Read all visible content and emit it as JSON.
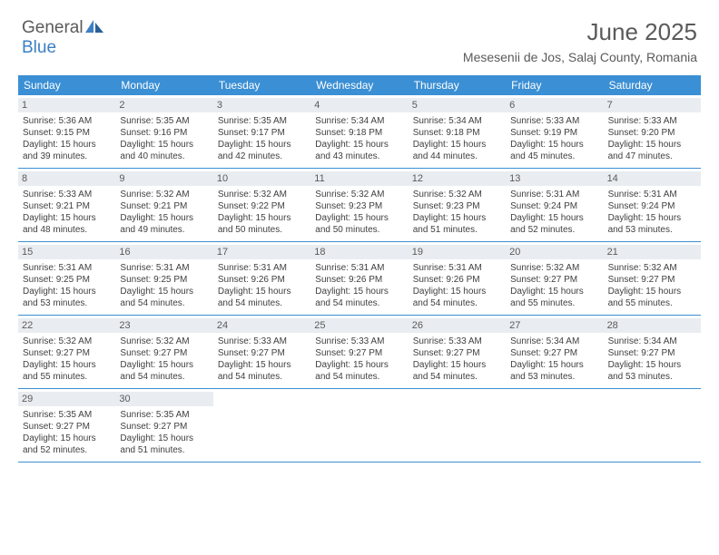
{
  "logo": {
    "text1": "General",
    "text2": "Blue"
  },
  "title": "June 2025",
  "location": "Mesesenii de Jos, Salaj County, Romania",
  "colors": {
    "header_bg": "#3b8fd4",
    "daynum_bg": "#e9edf1",
    "text_muted": "#5a5a5a",
    "text_body": "#404040",
    "logo_blue": "#3b7fc4"
  },
  "layout": {
    "columns": 7,
    "weeks": 5,
    "daynum_fontsize": 11,
    "body_fontsize": 10,
    "header_fontsize": 12,
    "title_fontsize": 26,
    "location_fontsize": 14
  },
  "daynames": [
    "Sunday",
    "Monday",
    "Tuesday",
    "Wednesday",
    "Thursday",
    "Friday",
    "Saturday"
  ],
  "days": [
    {
      "n": "1",
      "sr": "Sunrise: 5:36 AM",
      "ss": "Sunset: 9:15 PM",
      "d1": "Daylight: 15 hours",
      "d2": "and 39 minutes."
    },
    {
      "n": "2",
      "sr": "Sunrise: 5:35 AM",
      "ss": "Sunset: 9:16 PM",
      "d1": "Daylight: 15 hours",
      "d2": "and 40 minutes."
    },
    {
      "n": "3",
      "sr": "Sunrise: 5:35 AM",
      "ss": "Sunset: 9:17 PM",
      "d1": "Daylight: 15 hours",
      "d2": "and 42 minutes."
    },
    {
      "n": "4",
      "sr": "Sunrise: 5:34 AM",
      "ss": "Sunset: 9:18 PM",
      "d1": "Daylight: 15 hours",
      "d2": "and 43 minutes."
    },
    {
      "n": "5",
      "sr": "Sunrise: 5:34 AM",
      "ss": "Sunset: 9:18 PM",
      "d1": "Daylight: 15 hours",
      "d2": "and 44 minutes."
    },
    {
      "n": "6",
      "sr": "Sunrise: 5:33 AM",
      "ss": "Sunset: 9:19 PM",
      "d1": "Daylight: 15 hours",
      "d2": "and 45 minutes."
    },
    {
      "n": "7",
      "sr": "Sunrise: 5:33 AM",
      "ss": "Sunset: 9:20 PM",
      "d1": "Daylight: 15 hours",
      "d2": "and 47 minutes."
    },
    {
      "n": "8",
      "sr": "Sunrise: 5:33 AM",
      "ss": "Sunset: 9:21 PM",
      "d1": "Daylight: 15 hours",
      "d2": "and 48 minutes."
    },
    {
      "n": "9",
      "sr": "Sunrise: 5:32 AM",
      "ss": "Sunset: 9:21 PM",
      "d1": "Daylight: 15 hours",
      "d2": "and 49 minutes."
    },
    {
      "n": "10",
      "sr": "Sunrise: 5:32 AM",
      "ss": "Sunset: 9:22 PM",
      "d1": "Daylight: 15 hours",
      "d2": "and 50 minutes."
    },
    {
      "n": "11",
      "sr": "Sunrise: 5:32 AM",
      "ss": "Sunset: 9:23 PM",
      "d1": "Daylight: 15 hours",
      "d2": "and 50 minutes."
    },
    {
      "n": "12",
      "sr": "Sunrise: 5:32 AM",
      "ss": "Sunset: 9:23 PM",
      "d1": "Daylight: 15 hours",
      "d2": "and 51 minutes."
    },
    {
      "n": "13",
      "sr": "Sunrise: 5:31 AM",
      "ss": "Sunset: 9:24 PM",
      "d1": "Daylight: 15 hours",
      "d2": "and 52 minutes."
    },
    {
      "n": "14",
      "sr": "Sunrise: 5:31 AM",
      "ss": "Sunset: 9:24 PM",
      "d1": "Daylight: 15 hours",
      "d2": "and 53 minutes."
    },
    {
      "n": "15",
      "sr": "Sunrise: 5:31 AM",
      "ss": "Sunset: 9:25 PM",
      "d1": "Daylight: 15 hours",
      "d2": "and 53 minutes."
    },
    {
      "n": "16",
      "sr": "Sunrise: 5:31 AM",
      "ss": "Sunset: 9:25 PM",
      "d1": "Daylight: 15 hours",
      "d2": "and 54 minutes."
    },
    {
      "n": "17",
      "sr": "Sunrise: 5:31 AM",
      "ss": "Sunset: 9:26 PM",
      "d1": "Daylight: 15 hours",
      "d2": "and 54 minutes."
    },
    {
      "n": "18",
      "sr": "Sunrise: 5:31 AM",
      "ss": "Sunset: 9:26 PM",
      "d1": "Daylight: 15 hours",
      "d2": "and 54 minutes."
    },
    {
      "n": "19",
      "sr": "Sunrise: 5:31 AM",
      "ss": "Sunset: 9:26 PM",
      "d1": "Daylight: 15 hours",
      "d2": "and 54 minutes."
    },
    {
      "n": "20",
      "sr": "Sunrise: 5:32 AM",
      "ss": "Sunset: 9:27 PM",
      "d1": "Daylight: 15 hours",
      "d2": "and 55 minutes."
    },
    {
      "n": "21",
      "sr": "Sunrise: 5:32 AM",
      "ss": "Sunset: 9:27 PM",
      "d1": "Daylight: 15 hours",
      "d2": "and 55 minutes."
    },
    {
      "n": "22",
      "sr": "Sunrise: 5:32 AM",
      "ss": "Sunset: 9:27 PM",
      "d1": "Daylight: 15 hours",
      "d2": "and 55 minutes."
    },
    {
      "n": "23",
      "sr": "Sunrise: 5:32 AM",
      "ss": "Sunset: 9:27 PM",
      "d1": "Daylight: 15 hours",
      "d2": "and 54 minutes."
    },
    {
      "n": "24",
      "sr": "Sunrise: 5:33 AM",
      "ss": "Sunset: 9:27 PM",
      "d1": "Daylight: 15 hours",
      "d2": "and 54 minutes."
    },
    {
      "n": "25",
      "sr": "Sunrise: 5:33 AM",
      "ss": "Sunset: 9:27 PM",
      "d1": "Daylight: 15 hours",
      "d2": "and 54 minutes."
    },
    {
      "n": "26",
      "sr": "Sunrise: 5:33 AM",
      "ss": "Sunset: 9:27 PM",
      "d1": "Daylight: 15 hours",
      "d2": "and 54 minutes."
    },
    {
      "n": "27",
      "sr": "Sunrise: 5:34 AM",
      "ss": "Sunset: 9:27 PM",
      "d1": "Daylight: 15 hours",
      "d2": "and 53 minutes."
    },
    {
      "n": "28",
      "sr": "Sunrise: 5:34 AM",
      "ss": "Sunset: 9:27 PM",
      "d1": "Daylight: 15 hours",
      "d2": "and 53 minutes."
    },
    {
      "n": "29",
      "sr": "Sunrise: 5:35 AM",
      "ss": "Sunset: 9:27 PM",
      "d1": "Daylight: 15 hours",
      "d2": "and 52 minutes."
    },
    {
      "n": "30",
      "sr": "Sunrise: 5:35 AM",
      "ss": "Sunset: 9:27 PM",
      "d1": "Daylight: 15 hours",
      "d2": "and 51 minutes."
    }
  ]
}
